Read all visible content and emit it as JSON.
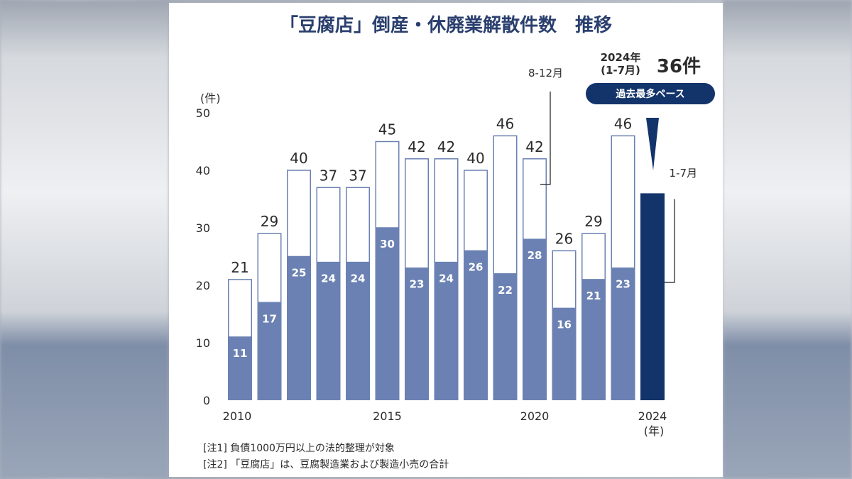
{
  "title": "「豆腐店」倒産・休廃業解散件数　推移",
  "unit_label": "(件)",
  "year_unit": "(年)",
  "callout_8_12": "8-12月",
  "callout_1_7": "1-7月",
  "highlight": {
    "year_label": "2024年",
    "period_label": "(1-7月)",
    "count": "36件",
    "badge": "過去最多ペース"
  },
  "notes": [
    "[注1]  負債1000万円以上の法的整理が対象",
    "[注2]  「豆腐店」は、豆腐製造業および製造小売の合計"
  ],
  "colors": {
    "jan_jul": "#6b81b3",
    "aug_dec": "#ffffff",
    "highlight": "#13336b",
    "badge": "#13336b"
  },
  "chart_data": {
    "type": "bar",
    "stacked": true,
    "x": [
      2010,
      2011,
      2012,
      2013,
      2014,
      2015,
      2016,
      2017,
      2018,
      2019,
      2020,
      2021,
      2022,
      2023,
      2024
    ],
    "x_tick_labels": [
      "2010",
      "2015",
      "2020",
      "2024"
    ],
    "series": [
      {
        "name": "1-7月",
        "values": [
          11,
          17,
          25,
          24,
          24,
          30,
          23,
          24,
          26,
          22,
          28,
          16,
          21,
          23,
          36
        ]
      },
      {
        "name": "8-12月",
        "values": [
          10,
          12,
          15,
          13,
          13,
          15,
          19,
          18,
          14,
          24,
          14,
          10,
          8,
          23,
          null
        ]
      }
    ],
    "totals": [
      21,
      29,
      40,
      37,
      37,
      45,
      42,
      42,
      40,
      46,
      42,
      26,
      29,
      46,
      null
    ],
    "ylim": [
      0,
      50
    ],
    "yticks": [
      0,
      10,
      20,
      30,
      40,
      50
    ],
    "grid": false
  }
}
